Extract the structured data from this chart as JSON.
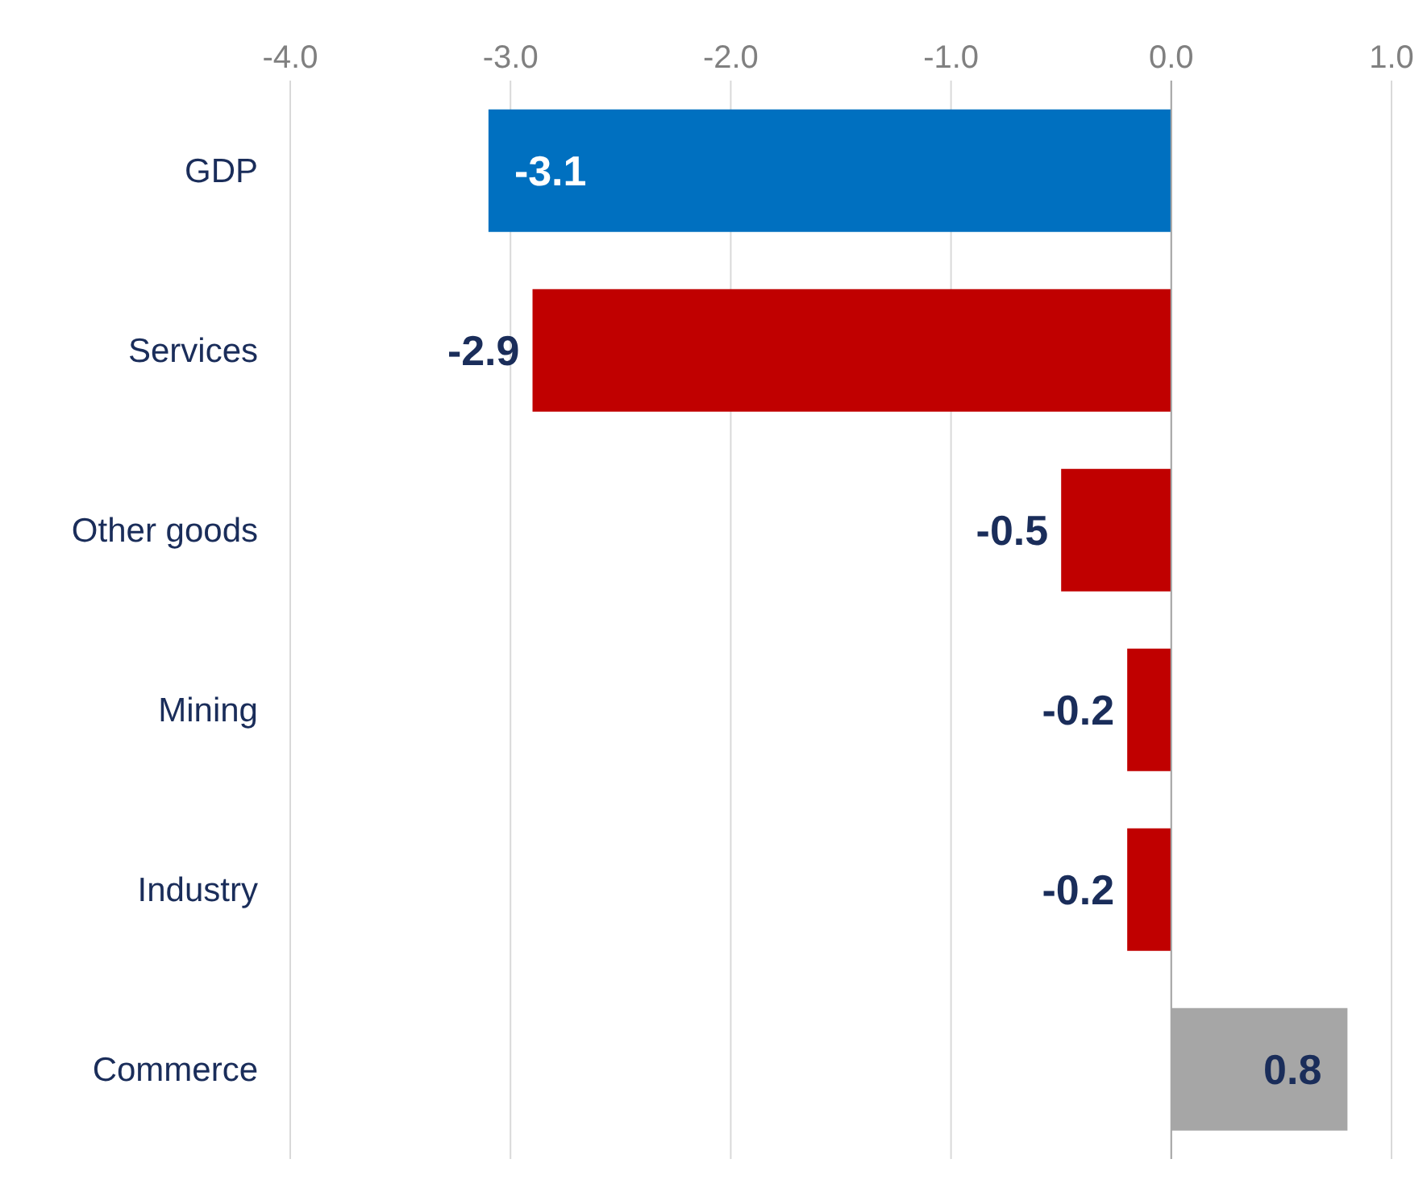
{
  "chart_data": {
    "type": "bar",
    "orientation": "horizontal",
    "categories": [
      "GDP",
      "Services",
      "Other goods",
      "Mining",
      "Industry",
      "Commerce"
    ],
    "values": [
      -3.1,
      -2.9,
      -0.5,
      -0.2,
      -0.2,
      0.8
    ],
    "colors": [
      "#0070c0",
      "#c00000",
      "#c00000",
      "#c00000",
      "#c00000",
      "#a6a6a6"
    ],
    "xlim": [
      -4,
      1
    ],
    "xticks": [
      {
        "value": -4,
        "label": "-4.0"
      },
      {
        "value": -3,
        "label": "-3.0"
      },
      {
        "value": -2,
        "label": "-2.0"
      },
      {
        "value": -1,
        "label": "-1.0"
      },
      {
        "value": 0,
        "label": "0.0"
      },
      {
        "value": 1,
        "label": "1.0"
      }
    ],
    "grid": "x",
    "data_labels": true,
    "legend": false
  }
}
